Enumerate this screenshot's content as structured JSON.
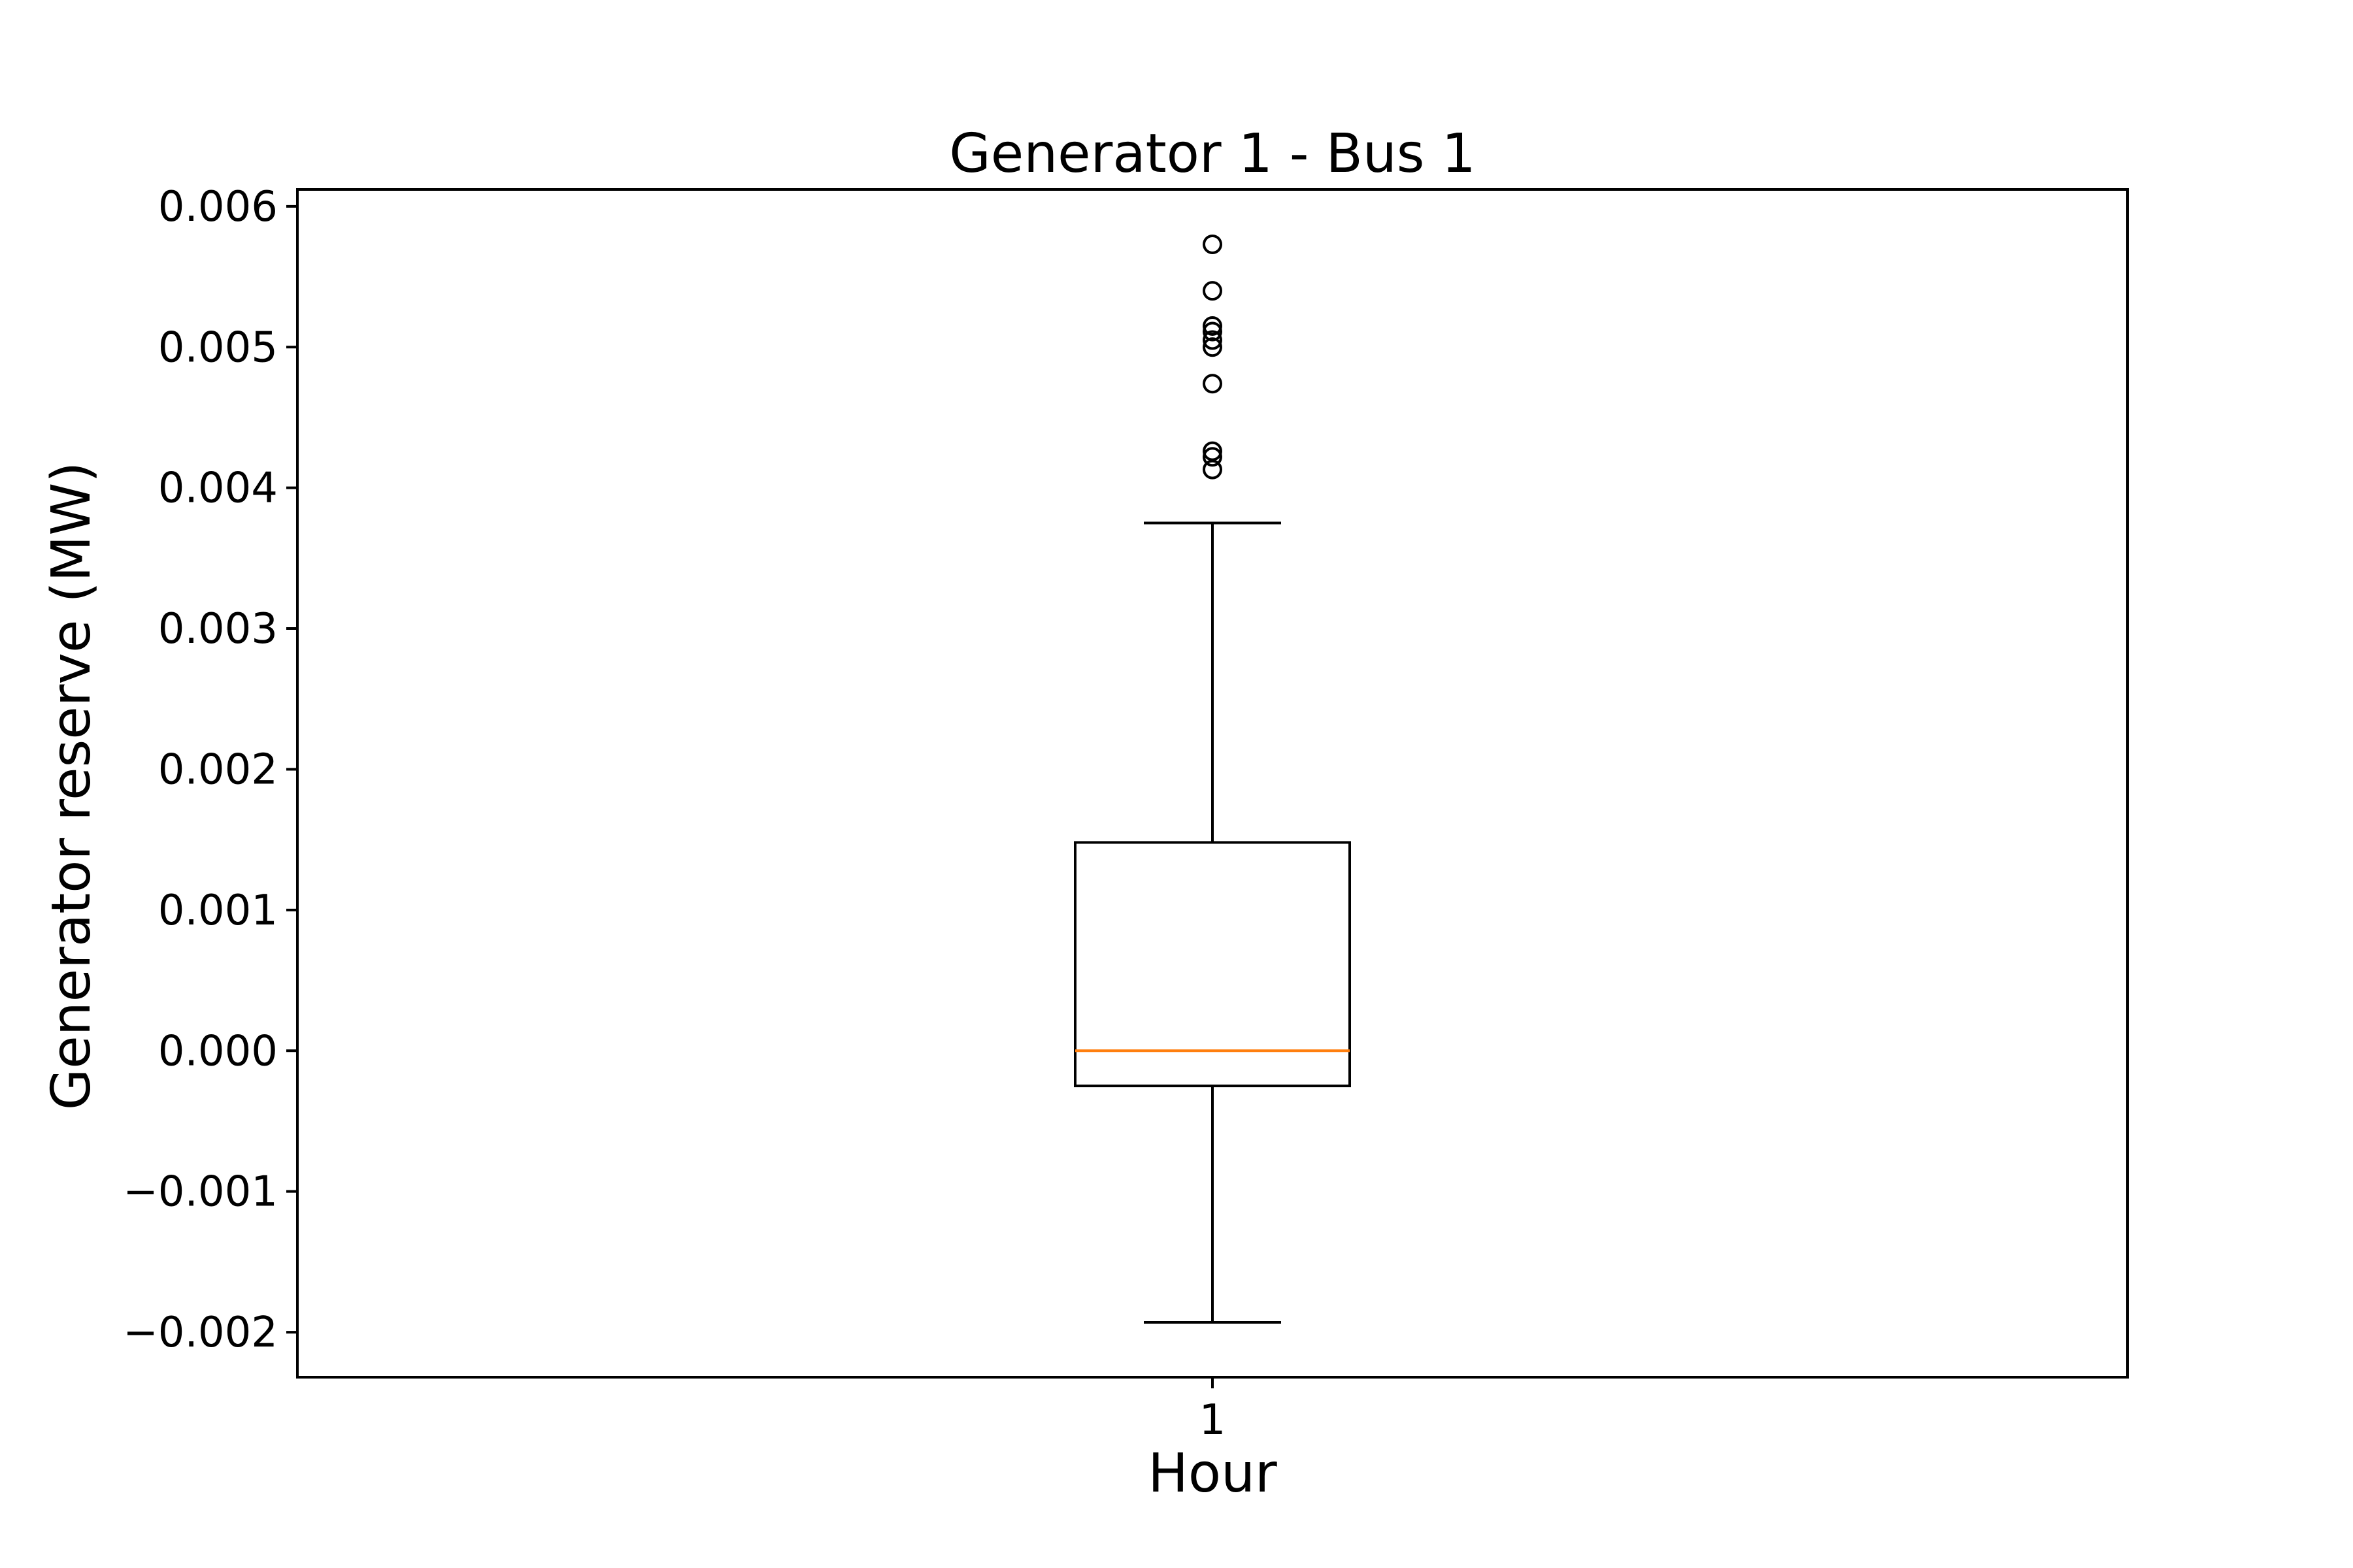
{
  "chart_data": {
    "type": "boxplot",
    "title": "Generator 1 - Bus 1",
    "xlabel": "Hour",
    "ylabel": "Generator reserve (MW)",
    "categories": [
      "1"
    ],
    "ylim": [
      -0.00232,
      0.00612
    ],
    "yticks": [
      -0.002,
      -0.001,
      0.0,
      0.001,
      0.002,
      0.003,
      0.004,
      0.005,
      0.006
    ],
    "ytick_labels": [
      "−0.002",
      "−0.001",
      "0.000",
      "0.001",
      "0.002",
      "0.003",
      "0.004",
      "0.005",
      "0.006"
    ],
    "grid": false,
    "boxes": [
      {
        "category": "1",
        "whisker_low": -0.00193,
        "q1": -0.00025,
        "median": 0.0,
        "q3": 0.00148,
        "whisker_high": 0.00375,
        "outliers": [
          0.00413,
          0.00422,
          0.00426,
          0.00474,
          0.005,
          0.00505,
          0.00511,
          0.00515,
          0.0054,
          0.00573
        ]
      }
    ],
    "colors": {
      "box": "#000000",
      "median": "#ff7f0e",
      "background": "#ffffff"
    }
  }
}
